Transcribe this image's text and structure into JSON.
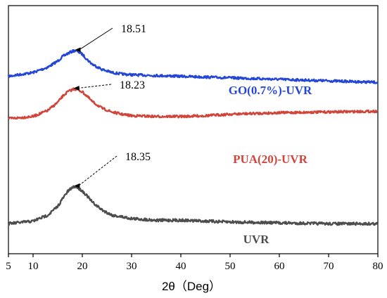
{
  "chart_data": {
    "type": "line",
    "title": "",
    "xlabel": "2θ（Deg）",
    "ylabel": "",
    "xlim": [
      5,
      80
    ],
    "xticks": [
      5,
      10,
      20,
      30,
      40,
      50,
      60,
      70,
      80
    ],
    "grid": false,
    "legend": "none",
    "series": [
      {
        "name": "GO(0.7%)-UVR",
        "color": "#2446d6",
        "peak_x": 18.51,
        "peak_label": "18.51",
        "x": [
          5,
          10,
          13,
          15,
          16,
          17,
          18,
          18.51,
          19,
          20,
          21,
          22,
          24,
          26,
          28,
          30,
          35,
          40,
          45,
          50,
          60,
          70,
          80
        ],
        "y": [
          82,
          77,
          70,
          62,
          56,
          52,
          49,
          48,
          49,
          53,
          60,
          66,
          73,
          77,
          79,
          80,
          81,
          82,
          83,
          84,
          86,
          88,
          90
        ]
      },
      {
        "name": "PUA(20)-UVR",
        "color": "#d0443a",
        "peak_x": 18.23,
        "peak_label": "18.23",
        "x": [
          5,
          10,
          13,
          15,
          16,
          17,
          18,
          18.23,
          19,
          20,
          21,
          22,
          24,
          26,
          28,
          30,
          35,
          40,
          45,
          50,
          60,
          70,
          80
        ],
        "y": [
          48,
          45,
          37,
          26,
          18,
          12,
          9,
          8,
          9,
          12,
          18,
          25,
          34,
          39,
          42,
          44,
          45,
          45,
          44,
          42,
          40,
          39,
          38
        ]
      },
      {
        "name": "UVR",
        "color": "#4d4d4d",
        "peak_x": 18.35,
        "peak_label": "18.35",
        "x": [
          5,
          10,
          13,
          15,
          16,
          17,
          18,
          18.35,
          19,
          20,
          21,
          22,
          24,
          26,
          28,
          30,
          35,
          40,
          45,
          50,
          60,
          70,
          80
        ],
        "y": [
          84,
          81,
          74,
          64,
          55,
          47,
          42,
          41,
          42,
          46,
          52,
          59,
          68,
          74,
          76,
          78,
          80,
          80,
          81,
          82,
          83,
          84,
          84
        ]
      }
    ]
  }
}
